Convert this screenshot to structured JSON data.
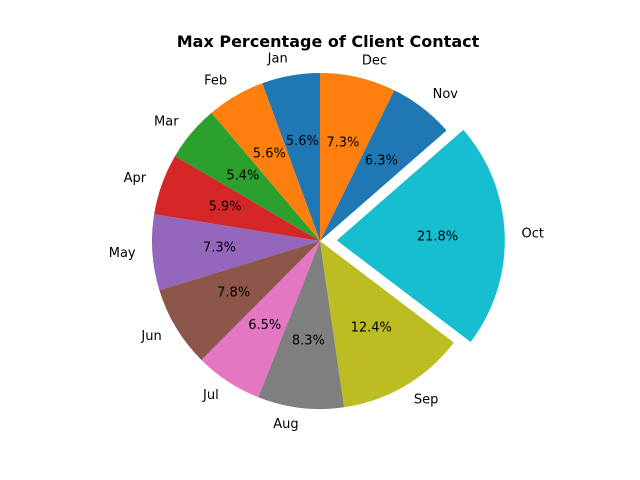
{
  "chart_data": {
    "type": "pie",
    "title": "Max Percentage of Client Contact",
    "categories": [
      "Jan",
      "Feb",
      "Mar",
      "Apr",
      "May",
      "Jun",
      "Jul",
      "Aug",
      "Sep",
      "Oct",
      "Nov",
      "Dec"
    ],
    "values": [
      5.6,
      5.6,
      5.4,
      5.9,
      7.3,
      7.8,
      6.5,
      8.3,
      12.4,
      21.8,
      6.3,
      7.3
    ],
    "value_labels": [
      "5.6%",
      "5.6%",
      "5.4%",
      "5.9%",
      "7.3%",
      "7.8%",
      "6.5%",
      "8.3%",
      "12.4%",
      "21.8%",
      "6.3%",
      "7.3%"
    ],
    "colors": [
      "#1f77b4",
      "#ff7f0e",
      "#2ca02c",
      "#d62728",
      "#9467bd",
      "#8c564b",
      "#e377c2",
      "#7f7f7f",
      "#bcbd22",
      "#17becf",
      "#1f77b4",
      "#ff7f0e"
    ],
    "exploded": [
      "Oct"
    ],
    "start_angle": 90,
    "direction": "counterclockwise",
    "legend": "none",
    "grid": false
  }
}
